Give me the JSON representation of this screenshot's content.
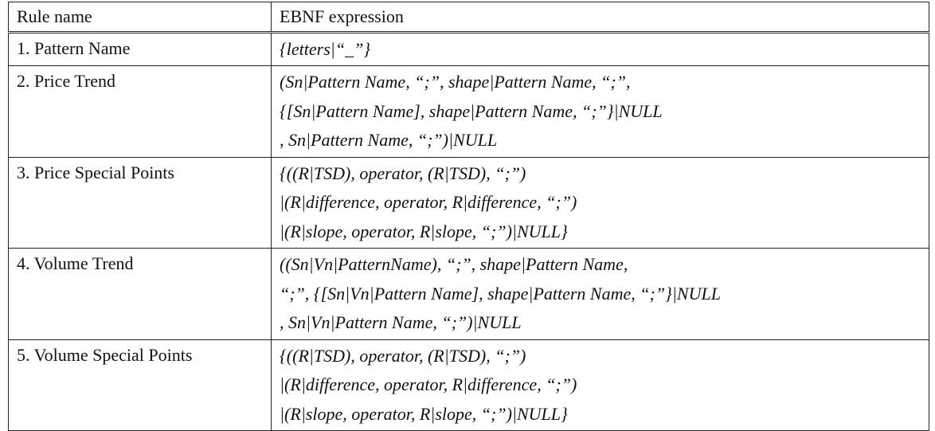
{
  "table": {
    "headers": [
      "Rule name",
      "EBNF expression"
    ],
    "rows": [
      {
        "name": "1. Pattern Name",
        "lines": [
          "{letters|“_”}"
        ]
      },
      {
        "name": "2. Price Trend",
        "lines": [
          "(Sn|Pattern Name, “;”, shape|Pattern Name, “;”,",
          "{[Sn|Pattern Name], shape|Pattern  Name, “;”}|NULL",
          ", Sn|Pattern Name, “;”)|NULL"
        ]
      },
      {
        "name": "3. Price Special Points",
        "lines": [
          "{((R|TSD), operator, (R|TSD), “;”)",
          "|(R|difference, operator, R|difference, “;”)",
          "|(R|slope, operator, R|slope, “;”)|NULL}"
        ]
      },
      {
        "name": "4. Volume Trend",
        "lines": [
          "((Sn|Vn|PatternName), “;”, shape|Pattern  Name,",
          "“;”, {[Sn|Vn|Pattern Name], shape|Pattern Name, “;”}|NULL",
          ", Sn|Vn|Pattern Name, “;”)|NULL"
        ]
      },
      {
        "name": "5. Volume Special Points",
        "lines": [
          "{((R|TSD), operator, (R|TSD), “;”)",
          "|(R|difference, operator, R|difference, “;”)",
          "|(R|slope, operator, R|slope, “;”)|NULL}"
        ]
      }
    ]
  }
}
